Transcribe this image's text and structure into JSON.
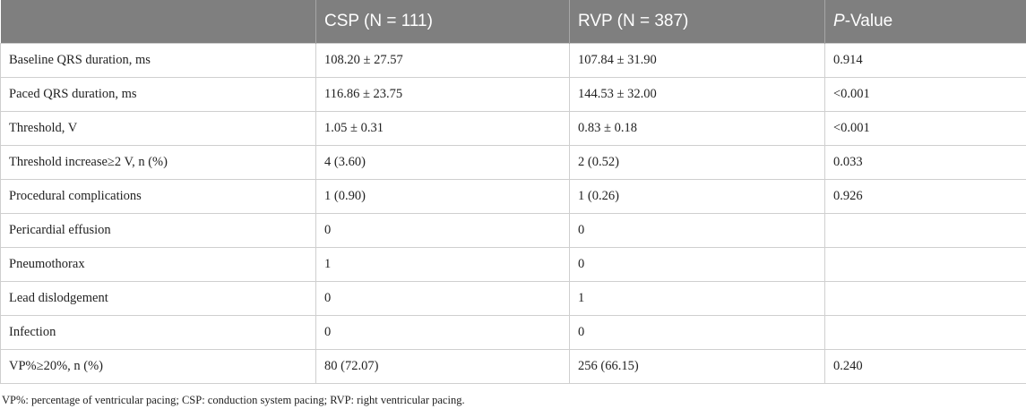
{
  "table": {
    "headers": {
      "col0": "",
      "col1": "CSP (N = 111)",
      "col2": "RVP (N = 387)",
      "col3_italic": "P",
      "col3_rest": "-Value"
    },
    "rows": [
      [
        "Baseline QRS duration, ms",
        "108.20 ± 27.57",
        "107.84 ± 31.90",
        "0.914"
      ],
      [
        "Paced QRS duration, ms",
        "116.86 ± 23.75",
        "144.53 ± 32.00",
        "<0.001"
      ],
      [
        "Threshold, V",
        "1.05 ± 0.31",
        "0.83 ± 0.18",
        "<0.001"
      ],
      [
        "Threshold increase≥2 V, n (%)",
        "4 (3.60)",
        "2 (0.52)",
        "0.033"
      ],
      [
        "Procedural complications",
        "1 (0.90)",
        "1 (0.26)",
        "0.926"
      ],
      [
        "Pericardial effusion",
        "0",
        "0",
        ""
      ],
      [
        "Pneumothorax",
        "1",
        "0",
        ""
      ],
      [
        "Lead dislodgement",
        "0",
        "1",
        ""
      ],
      [
        "Infection",
        "0",
        "0",
        ""
      ],
      [
        "VP%≥20%, n (%)",
        "80 (72.07)",
        "256 (66.15)",
        "0.240"
      ]
    ]
  },
  "footnote": "VP%: percentage of ventricular pacing; CSP: conduction system pacing; RVP: right ventricular pacing."
}
